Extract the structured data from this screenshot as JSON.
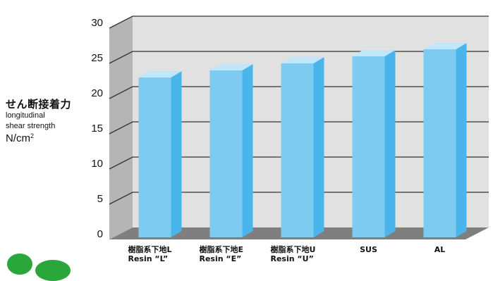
{
  "chart_data": {
    "type": "bar",
    "categories": [
      [
        "樹脂系下地L",
        "Resin “L”"
      ],
      [
        "樹脂系下地E",
        "Resin “E”"
      ],
      [
        "樹脂系下地U",
        "Resin “U”"
      ],
      [
        "SUS"
      ],
      [
        "AL"
      ]
    ],
    "values": [
      23,
      24,
      25,
      26,
      27
    ],
    "ylim": [
      0,
      30
    ],
    "yticks": [
      0,
      5,
      10,
      15,
      20,
      25,
      30
    ],
    "ylabel": {
      "ja": "せん断接着力",
      "en_line1": "longitudinal",
      "en_line2": "shear strength",
      "unit": "N/cm",
      "unit_sup": "2"
    },
    "grid": true,
    "legend": "none",
    "style": "3d",
    "colors": {
      "bar_front": "#7ecbf1",
      "bar_top": "#bfe6f9",
      "bar_side": "#4ab5ea",
      "back_wall": "#e1e1e1",
      "side_wall": "#b5b5b5",
      "floor": "#7f7f7f",
      "gridline": "#333333"
    }
  }
}
